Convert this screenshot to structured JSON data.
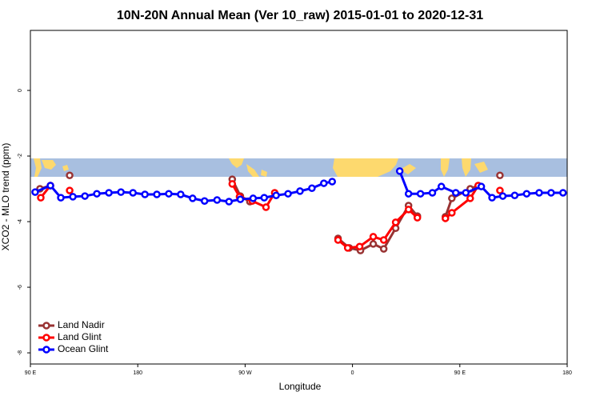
{
  "chart_data": {
    "type": "line",
    "title": "10N-20N Annual Mean (Ver 10_raw)   2015-01-01 to 2020-12-31",
    "x_label": "Longitude",
    "y_label": "XCO2 - MLO trend (ppm)",
    "xlim": [
      90,
      540
    ],
    "ylim": [
      -8.34,
      1.83
    ],
    "xticks": [
      {
        "value": 90,
        "label": "90 E"
      },
      {
        "value": 180,
        "label": "180"
      },
      {
        "value": 270,
        "label": "90 W"
      },
      {
        "value": 360,
        "label": "0"
      },
      {
        "value": 450,
        "label": "90 E"
      },
      {
        "value": 540,
        "label": "180"
      }
    ],
    "yticks": [
      -8,
      -6,
      -4,
      -2,
      0
    ],
    "legend": "bottom-left",
    "series": [
      {
        "name": "Land Nadir",
        "color": "#993333",
        "x": [
          98,
          106.8,
          115,
          122.9,
          190,
          259.2,
          266,
          274,
          310,
          347.9,
          357.3,
          366.7,
          377.4,
          386.2,
          396.2,
          407,
          414.4,
          425,
          437.9,
          443.3,
          458.7,
          465.4,
          475,
          483.6
        ],
        "values": [
          -3.0,
          -2.9,
          null,
          -2.59,
          null,
          -2.71,
          -3.22,
          -3.39,
          null,
          -4.51,
          -4.8,
          -4.88,
          -4.68,
          -4.83,
          -4.2,
          -3.51,
          -3.83,
          null,
          -3.85,
          -3.29,
          -3.0,
          -2.9,
          null,
          -2.59
        ]
      },
      {
        "name": "Land Glint",
        "color": "#ff0000",
        "x": [
          98.7,
          106.8,
          115,
          122.9,
          190,
          259.2,
          265.3,
          276,
          287.5,
          294.8,
          320,
          347.9,
          356,
          366,
          377.4,
          386.2,
          396.2,
          407,
          414.4,
          425,
          437.9,
          443.3,
          458.7,
          465.4,
          475,
          483.6
        ],
        "values": [
          -3.27,
          -2.9,
          null,
          -3.05,
          null,
          -2.85,
          -3.24,
          -3.37,
          -3.56,
          -3.12,
          null,
          -4.56,
          -4.8,
          -4.76,
          -4.46,
          -4.56,
          -4.02,
          -3.63,
          -3.88,
          null,
          -3.9,
          -3.73,
          -3.29,
          -2.9,
          null,
          -3.05
        ]
      },
      {
        "name": "Ocean Glint",
        "color": "#0000ff",
        "x": [
          94,
          106.8,
          115.5,
          125.6,
          135.7,
          145.7,
          155.8,
          165.9,
          176,
          186,
          196,
          206,
          216,
          226,
          236,
          246.5,
          256.5,
          266,
          276.7,
          286,
          296,
          306,
          316,
          326,
          336,
          343,
          371,
          399.6,
          407,
          417,
          427,
          434.5,
          446.6,
          455,
          468,
          477,
          486,
          496,
          506,
          516.5,
          526.5,
          536.5
        ],
        "values": [
          -3.1,
          -2.9,
          -3.27,
          -3.24,
          -3.22,
          -3.15,
          -3.12,
          -3.1,
          -3.12,
          -3.17,
          -3.17,
          -3.15,
          -3.17,
          -3.29,
          -3.37,
          -3.34,
          -3.39,
          -3.32,
          -3.29,
          -3.27,
          -3.2,
          -3.15,
          -3.07,
          -2.98,
          -2.83,
          -2.78,
          null,
          -2.46,
          -3.15,
          -3.15,
          -3.12,
          -2.93,
          -3.12,
          -3.12,
          -2.93,
          -3.27,
          -3.22,
          -3.2,
          -3.15,
          -3.12,
          -3.12,
          -3.12
        ]
      }
    ]
  }
}
